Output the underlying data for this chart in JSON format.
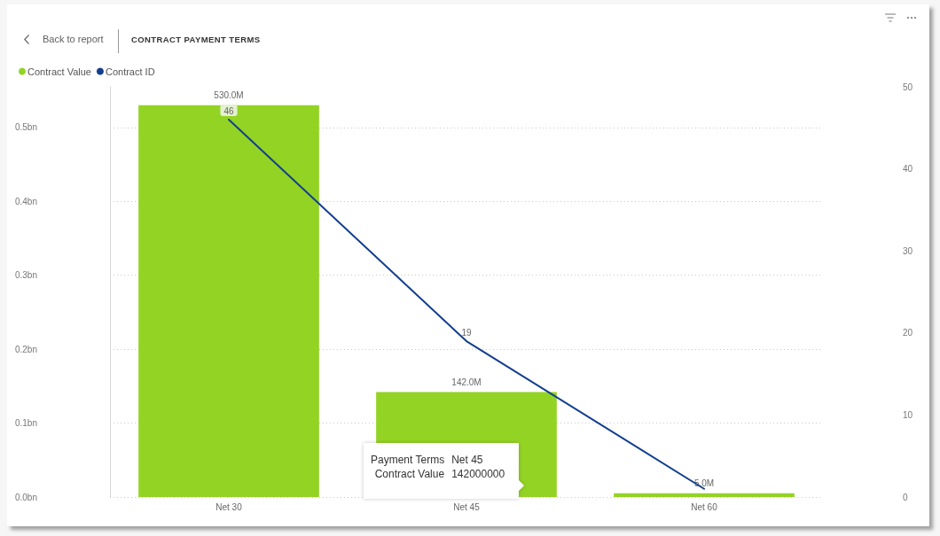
{
  "chart_data": {
    "type": "bar",
    "title": "CONTRACT PAYMENT TERMS",
    "annotations": [
      "Back to report",
      "Payment Terms",
      "Net 45",
      "Contract Value",
      "142000000"
    ],
    "categories": [
      "Net 30",
      "Net 45",
      "Net 60"
    ],
    "series": [
      {
        "name": "Contract Value",
        "color": "#93d324",
        "values": [
          530000000,
          142000000,
          5000000
        ],
        "value_labels": [
          "530.0M",
          "142.0M",
          "5.0M"
        ]
      },
      {
        "name": "Contract ID",
        "type": "line",
        "axis": "y2",
        "color": "#123e8f",
        "values": [
          46,
          19,
          1
        ],
        "value_labels": [
          "46",
          "19",
          null
        ]
      }
    ],
    "ylim": [
      0,
      555000000
    ],
    "yticks": [
      {
        "value": 0,
        "label": "0.0bn"
      },
      {
        "value": 100000000,
        "label": "0.1bn"
      },
      {
        "value": 200000000,
        "label": "0.2bn"
      },
      {
        "value": 300000000,
        "label": "0.3bn"
      },
      {
        "value": 400000000,
        "label": "0.4bn"
      },
      {
        "value": 500000000,
        "label": "0.5bn"
      }
    ],
    "y2lim": [
      0,
      50
    ],
    "y2ticks": [
      0,
      10,
      20,
      30,
      40,
      50
    ],
    "grid": "y",
    "legend": "top left",
    "marker": "none"
  }
}
